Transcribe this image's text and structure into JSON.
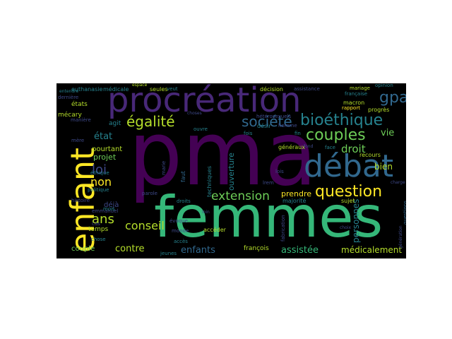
{
  "word_cloud": {
    "background": "#000000",
    "palette": [
      "#440154",
      "#482878",
      "#3e4989",
      "#31688e",
      "#26828e",
      "#1f9e89",
      "#35b779",
      "#6ece58",
      "#b5de2b",
      "#fde725"
    ],
    "words": [
      {
        "text": "pma",
        "color": "#440154"
      },
      {
        "text": "femmes",
        "color": "#35b779"
      },
      {
        "text": "procréation",
        "color": "#482878"
      },
      {
        "text": "enfant",
        "color": "#fde725"
      },
      {
        "text": "débat",
        "color": "#31688e"
      },
      {
        "text": "bioéthique",
        "color": "#26828e"
      },
      {
        "text": "couples",
        "color": "#6ece58"
      },
      {
        "text": "question",
        "color": "#fde725"
      },
      {
        "text": "société",
        "color": "#31688e"
      },
      {
        "text": "égalité",
        "color": "#b5de2b"
      },
      {
        "text": "gpa",
        "color": "#31688e"
      },
      {
        "text": "extension",
        "color": "#6ece58"
      },
      {
        "text": "loi",
        "color": "#3e4989"
      },
      {
        "text": "ans",
        "color": "#b5de2b"
      },
      {
        "text": "non",
        "color": "#fde725"
      },
      {
        "text": "conseil",
        "color": "#b5de2b"
      },
      {
        "text": "droit",
        "color": "#6ece58"
      },
      {
        "text": "état",
        "color": "#26828e"
      },
      {
        "text": "contre",
        "color": "#b5de2b"
      },
      {
        "text": "enfants",
        "color": "#31688e"
      },
      {
        "text": "assistée",
        "color": "#35b779"
      },
      {
        "text": "médicalement",
        "color": "#b5de2b"
      },
      {
        "text": "personnes",
        "color": "#26828e"
      },
      {
        "text": "vie",
        "color": "#6ece58"
      },
      {
        "text": "bien",
        "color": "#b5de2b"
      },
      {
        "text": "prendre",
        "color": "#fde725"
      },
      {
        "text": "ouverture",
        "color": "#26828e"
      },
      {
        "text": "projet",
        "color": "#6ece58"
      },
      {
        "text": "pourtant",
        "color": "#b5de2b"
      },
      {
        "text": "couple",
        "color": "#6ece58"
      },
      {
        "text": "temps",
        "color": "#b5de2b"
      },
      {
        "text": "agit",
        "color": "#26828e"
      },
      {
        "text": "déjà",
        "color": "#3e4989"
      },
      {
        "text": "mécary",
        "color": "#b5de2b"
      },
      {
        "text": "états",
        "color": "#b5de2b"
      },
      {
        "text": "euthanasie",
        "color": "#26828e"
      },
      {
        "text": "médicale",
        "color": "#26828e"
      },
      {
        "text": "seules",
        "color": "#b5de2b"
      },
      {
        "text": "décision",
        "color": "#b5de2b"
      },
      {
        "text": "assistance",
        "color": "#3e4989"
      },
      {
        "text": "mariage",
        "color": "#b5de2b"
      },
      {
        "text": "opinion",
        "color": "#26828e"
      },
      {
        "text": "française",
        "color": "#26828e"
      },
      {
        "text": "macron",
        "color": "#b5de2b"
      },
      {
        "text": "rapport",
        "color": "#fde725"
      },
      {
        "text": "progrès",
        "color": "#b5de2b"
      },
      {
        "text": "désir",
        "color": "#26828e"
      },
      {
        "text": "généraux",
        "color": "#b5de2b"
      },
      {
        "text": "face",
        "color": "#26828e"
      },
      {
        "text": "recours",
        "color": "#b5de2b"
      },
      {
        "text": "sujet",
        "color": "#b5de2b"
      },
      {
        "text": "majorité",
        "color": "#26828e"
      },
      {
        "text": "françois",
        "color": "#b5de2b"
      },
      {
        "text": "fabrication",
        "color": "#3e4989"
      },
      {
        "text": "accéder",
        "color": "#b5de2b"
      },
      {
        "text": "droits",
        "color": "#26828e"
      },
      {
        "text": "monde",
        "color": "#3e4989"
      },
      {
        "text": "accès",
        "color": "#26828e"
      },
      {
        "text": "jeunes",
        "color": "#26828e"
      },
      {
        "text": "emmanuel",
        "color": "#3e4989"
      },
      {
        "text": "mois",
        "color": "#26828e"
      },
      {
        "text": "histoire",
        "color": "#3e4989"
      },
      {
        "text": "chose",
        "color": "#26828e"
      },
      {
        "text": "parole",
        "color": "#3e4989"
      },
      {
        "text": "faut",
        "color": "#31688e"
      },
      {
        "text": "techniques",
        "color": "#26828e"
      },
      {
        "text": "lois",
        "color": "#3e4989"
      },
      {
        "text": "questions",
        "color": "#31688e"
      },
      {
        "text": "évoque",
        "color": "#3e4989"
      },
      {
        "text": "cas",
        "color": "#3e4989"
      },
      {
        "text": "politique",
        "color": "#26828e"
      },
      {
        "text": "éthique",
        "color": "#26828e"
      },
      {
        "text": "fin",
        "color": "#26828e"
      },
      {
        "text": "ouvre",
        "color": "#26828e"
      },
      {
        "text": "veut",
        "color": "#26828e"
      },
      {
        "text": "fois",
        "color": "#26828e"
      },
      {
        "text": "hétérosexuels",
        "color": "#3e4989"
      },
      {
        "text": "homme",
        "color": "#3e4989"
      },
      {
        "text": "marie",
        "color": "#3e4989"
      },
      {
        "text": "mère",
        "color": "#3e4989"
      },
      {
        "text": "manière",
        "color": "#3e4989"
      },
      {
        "text": "dernière",
        "color": "#3e4989"
      },
      {
        "text": "entendre",
        "color": "#26828e"
      },
      {
        "text": "espace",
        "color": "#b5de2b"
      },
      {
        "text": "choses",
        "color": "#3e4989"
      },
      {
        "text": "lrem",
        "color": "#3e4989"
      },
      {
        "text": "choix",
        "color": "#3e4989"
      },
      {
        "text": "fond",
        "color": "#3e4989"
      },
      {
        "text": "loin",
        "color": "#3e4989"
      },
      {
        "text": "charge",
        "color": "#3e4989"
      },
      {
        "text": "génération",
        "color": "#3e4989"
      }
    ]
  }
}
